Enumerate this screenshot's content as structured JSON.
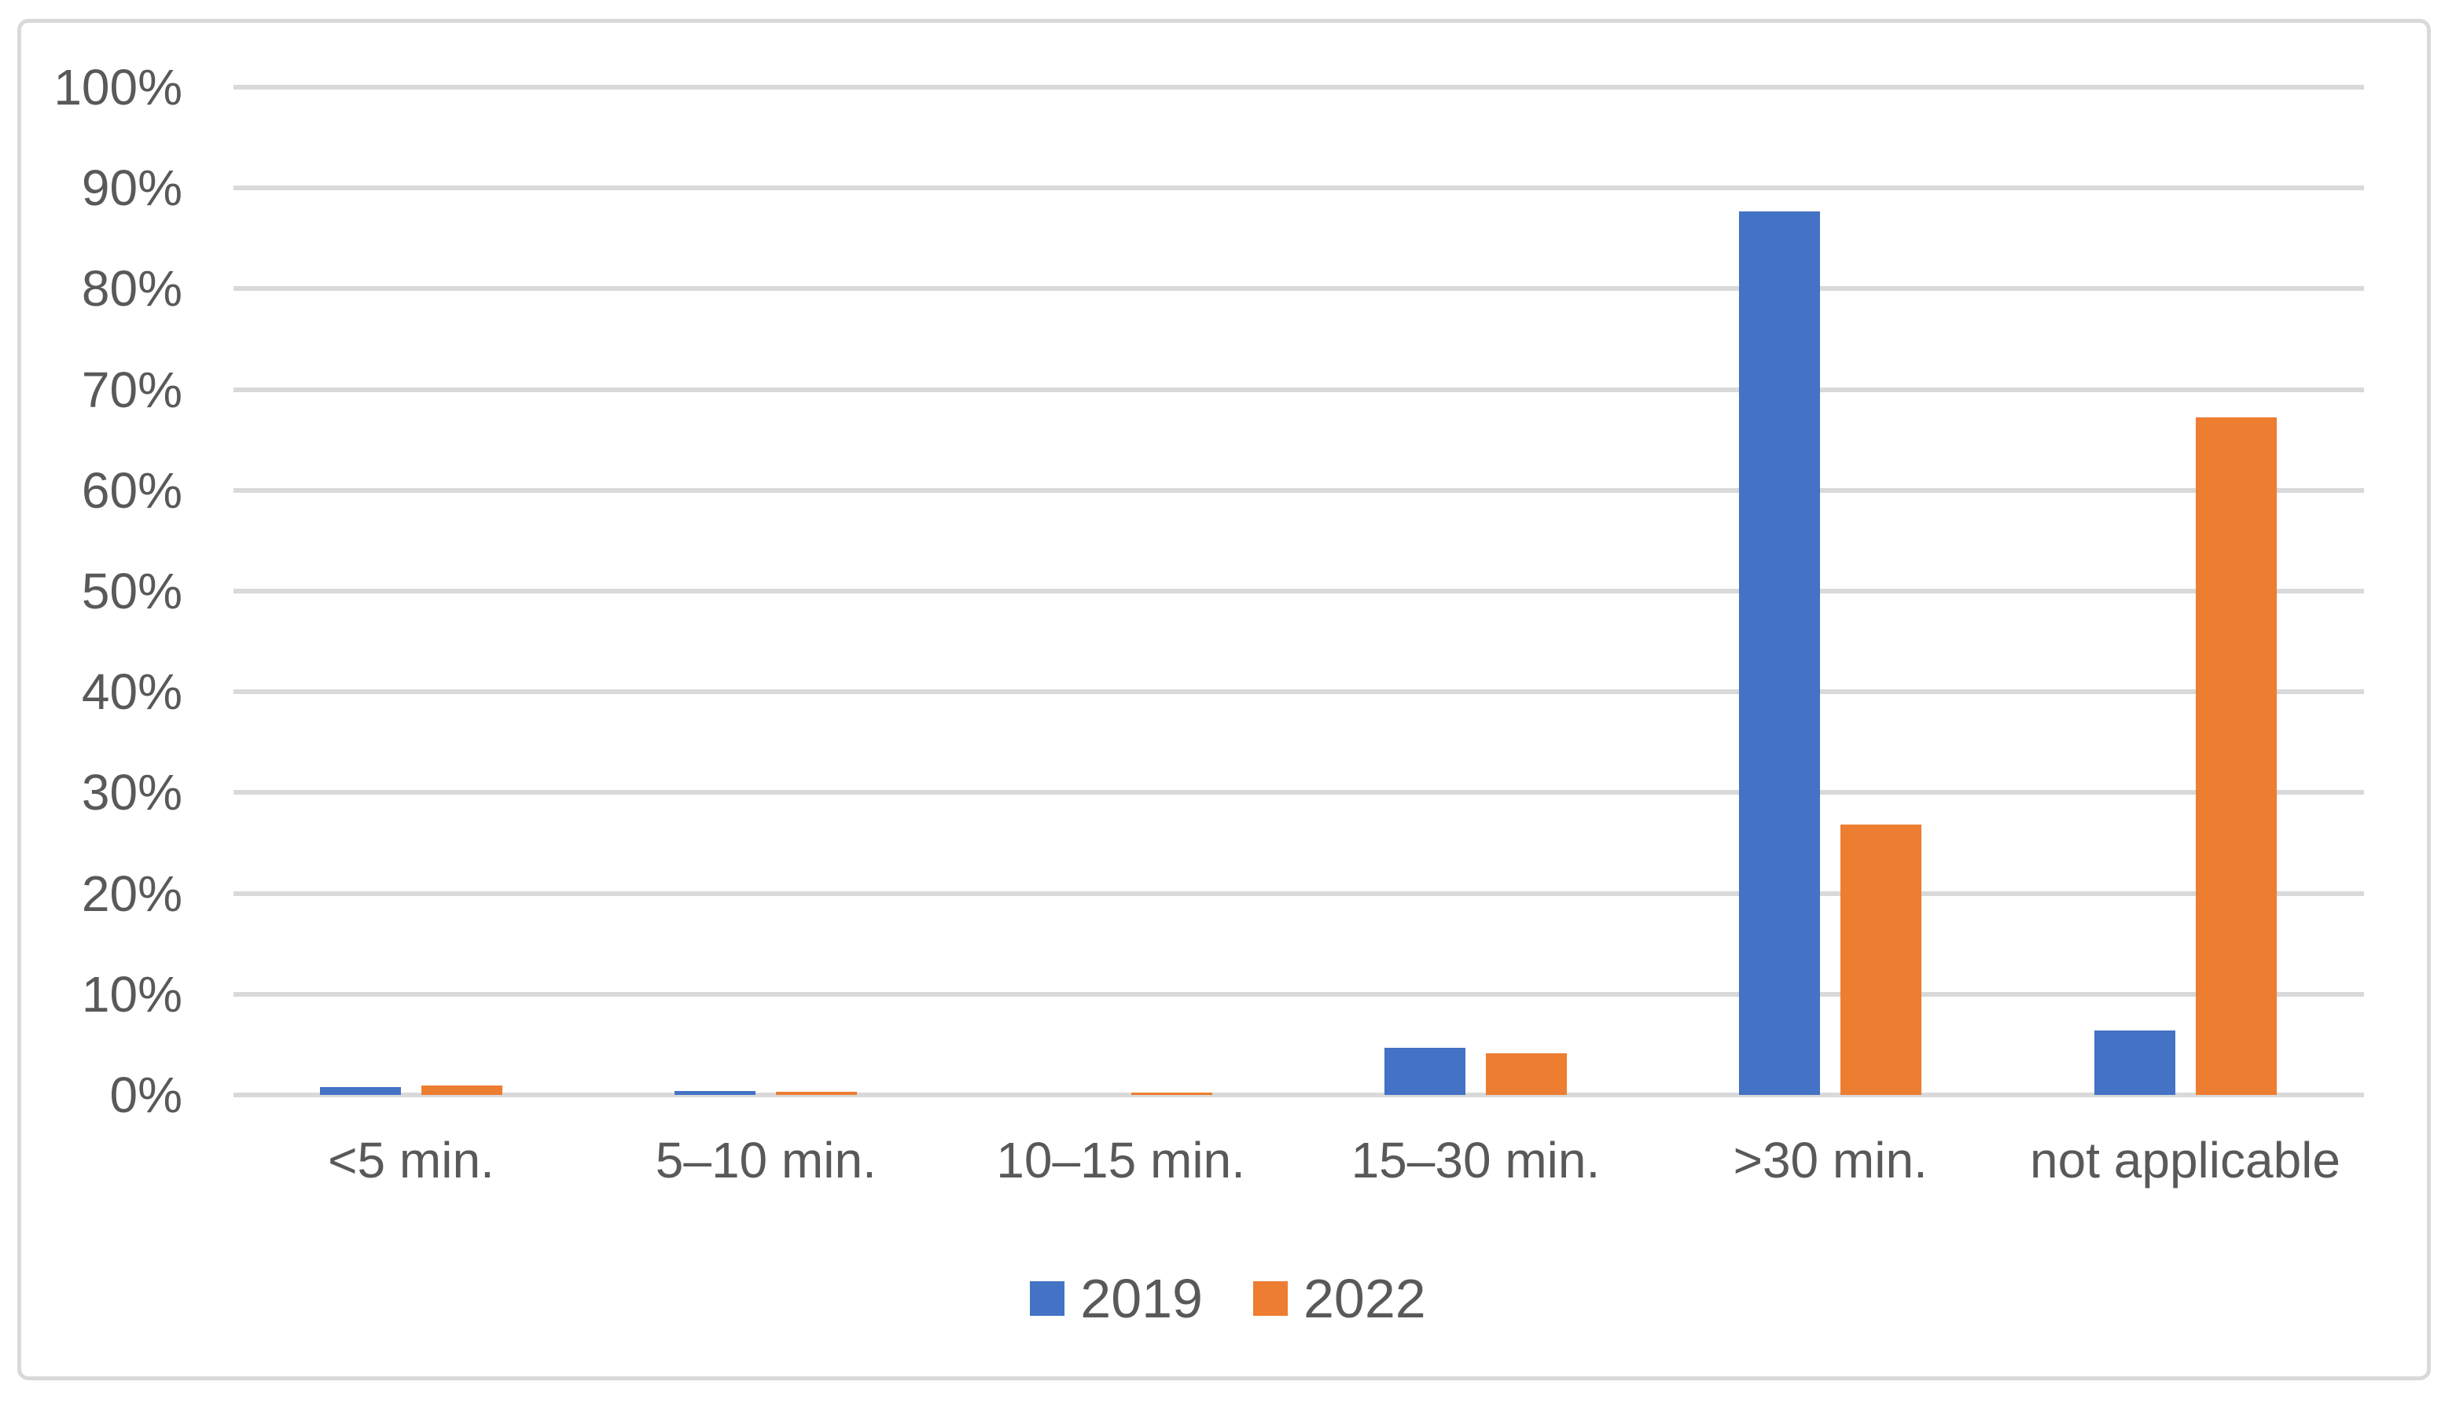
{
  "chart_data": {
    "type": "bar",
    "title": "",
    "subtitle": "",
    "categories": [
      "<5 min.",
      "5–10 min.",
      "10–15 min.",
      "15–30 min.",
      ">30 min.",
      "not applicable"
    ],
    "series": [
      {
        "name": "2019",
        "color": "#4472C4",
        "values": [
          0.8,
          0.4,
          0.0,
          4.7,
          87.7,
          6.4
        ]
      },
      {
        "name": "2022",
        "color": "#ED7D31",
        "values": [
          0.9,
          0.35,
          0.25,
          4.1,
          26.8,
          67.2
        ]
      }
    ],
    "y_axis": {
      "min": 0,
      "max": 100,
      "step": 10,
      "unit": "%",
      "tick_labels": [
        "0%",
        "10%",
        "20%",
        "30%",
        "40%",
        "50%",
        "60%",
        "70%",
        "80%",
        "90%",
        "100%"
      ]
    },
    "x_axis": {
      "label": ""
    },
    "grid": true,
    "legend_position": "bottom",
    "colors": {
      "gridline": "#D9D9D9",
      "axis_line": "#D9D9D9",
      "axis_text": "#595959",
      "legend_text": "#595959",
      "chart_border": "#D9D9D9",
      "background": "#FFFFFF"
    }
  }
}
